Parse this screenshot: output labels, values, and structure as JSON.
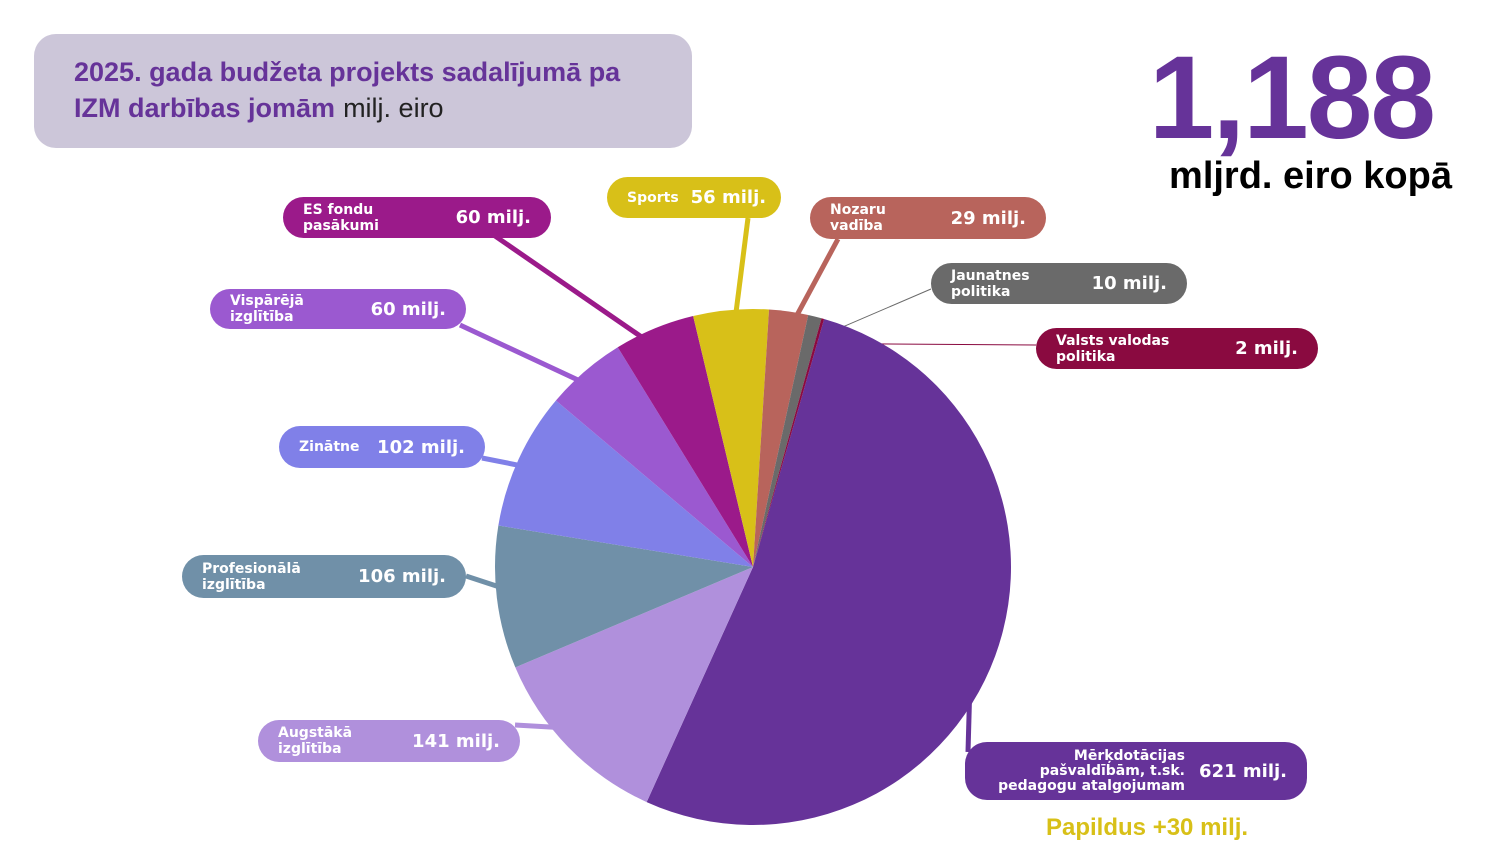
{
  "chart_data": {
    "type": "pie",
    "title": "2025. gada budžeta projekts sadalījumā pa IZM darbības jomām",
    "unit": "milj. eiro",
    "total_label": "1,188",
    "total_caption": "mljrd. eiro kopā",
    "annotation": "Papildus +30 milj.",
    "categories": [
      "Mērķdotācijas pašvaldībām, t.sk. pedagogu atalgojumam",
      "Augstākā izglītība",
      "Profesionālā izglītība",
      "Zinātne",
      "Vispārējā izglītība",
      "ES fondu pasākumi",
      "Sports",
      "Nozaru vadība",
      "Jaunatnes politika",
      "Valsts valodas politika"
    ],
    "values": [
      621,
      141,
      106,
      102,
      60,
      60,
      56,
      29,
      10,
      2
    ],
    "value_labels": [
      "621 milj.",
      "141 milj.",
      "106 milj.",
      "102 milj.",
      "60 milj.",
      "60 milj.",
      "56 milj.",
      "29 milj.",
      "10 milj.",
      "2 milj."
    ],
    "colors": [
      "#663399",
      "#b090dc",
      "#7090a8",
      "#8080e8",
      "#9b59d0",
      "#9b1a8a",
      "#d8c018",
      "#b8645c",
      "#6a6a6a",
      "#8a0a40"
    ]
  }
}
